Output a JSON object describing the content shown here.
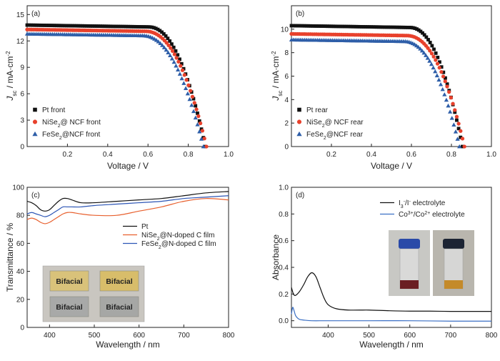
{
  "chart_data": [
    {
      "type": "scatter",
      "panel_label": "(a)",
      "xlabel": "Voltage / V",
      "ylabel_main": "J",
      "ylabel_sub": "sc",
      "ylabel_unit": " / mA·cm",
      "ylabel_sup": "-2",
      "xlim": [
        0,
        1.0
      ],
      "ylim": [
        0,
        16
      ],
      "xticks": [
        0.2,
        0.4,
        0.6,
        0.8,
        1.0
      ],
      "xticklabels": [
        "0.2",
        "0.4",
        "0.6",
        "0.8",
        "1.0"
      ],
      "yticks": [
        0,
        3,
        6,
        9,
        12,
        15
      ],
      "yticklabels": [
        "0",
        "3",
        "6",
        "9",
        "12",
        "15"
      ],
      "legend_position": "center-left",
      "series": [
        {
          "name": "Pt front",
          "legend_main": "Pt front",
          "legend_sub": "",
          "legend_rest": "",
          "marker": "square",
          "color": "#111111",
          "jsc": 13.8,
          "voc": 0.885,
          "knee": 0.6
        },
        {
          "name": "NiSe2@ NCF front",
          "legend_main": "NiSe",
          "legend_sub": "2",
          "legend_rest": "@ NCF front",
          "marker": "circle",
          "color": "#e8412c",
          "jsc": 13.3,
          "voc": 0.89,
          "knee": 0.585
        },
        {
          "name": "FeSe2@NCF front",
          "legend_main": "FeSe",
          "legend_sub": "2",
          "legend_rest": "@NCF  front",
          "marker": "triangle",
          "color": "#2e5ea8",
          "jsc": 12.8,
          "voc": 0.875,
          "knee": 0.57
        }
      ]
    },
    {
      "type": "scatter",
      "panel_label": "(b)",
      "xlabel": "Voltage / V",
      "ylabel_main": "J",
      "ylabel_sub": "sc",
      "ylabel_unit": " / mA·cm",
      "ylabel_sup": "-2",
      "xlim": [
        0,
        1.0
      ],
      "ylim": [
        0,
        12
      ],
      "xticks": [
        0.2,
        0.4,
        0.6,
        0.8,
        1.0
      ],
      "xticklabels": [
        "0.2",
        "0.4",
        "0.6",
        "0.8",
        "1.0"
      ],
      "yticks": [
        0,
        2,
        4,
        6,
        8,
        10
      ],
      "yticklabels": [
        "0",
        "2",
        "4",
        "6",
        "8",
        "10"
      ],
      "legend_position": "center-left",
      "series": [
        {
          "name": "Pt rear",
          "legend_main": "Pt rear",
          "legend_sub": "",
          "legend_rest": "",
          "marker": "square",
          "color": "#111111",
          "jsc": 10.3,
          "voc": 0.855,
          "knee": 0.59
        },
        {
          "name": "NiSe2@ NCF rear",
          "legend_main": "NiSe",
          "legend_sub": "2",
          "legend_rest": "@ NCF rear",
          "marker": "circle",
          "color": "#e8412c",
          "jsc": 9.6,
          "voc": 0.865,
          "knee": 0.575
        },
        {
          "name": "FeSe2@NCF rear",
          "legend_main": "FeSe",
          "legend_sub": "2",
          "legend_rest": "@NCF rear",
          "marker": "triangle",
          "color": "#2e5ea8",
          "jsc": 9.1,
          "voc": 0.84,
          "knee": 0.56
        }
      ]
    },
    {
      "type": "line",
      "panel_label": "(c)",
      "xlabel": "Wavelength / nm",
      "ylabel": "Transmittance / %",
      "xlim": [
        350,
        800
      ],
      "ylim": [
        0,
        100
      ],
      "xticks": [
        400,
        500,
        600,
        700,
        800
      ],
      "xticklabels": [
        "400",
        "500",
        "600",
        "700",
        "800"
      ],
      "yticks": [
        0,
        20,
        40,
        60,
        80,
        100
      ],
      "yticklabels": [
        "0",
        "20",
        "40",
        "60",
        "80",
        "100"
      ],
      "legend_position": "center-right",
      "series": [
        {
          "name": "Pt",
          "color": "#111111",
          "x": [
            350,
            360,
            370,
            380,
            390,
            400,
            410,
            420,
            430,
            440,
            450,
            470,
            500,
            550,
            600,
            650,
            700,
            750,
            800
          ],
          "y": [
            90,
            89,
            87,
            84,
            83,
            84,
            87,
            90,
            92,
            92,
            91,
            89,
            89,
            90,
            91,
            92,
            94,
            96,
            97
          ]
        },
        {
          "name": "NiSe2@N-doped C film",
          "legend_main": "NiSe",
          "legend_sub": "2",
          "legend_rest": "@N-doped C film",
          "color": "#e8602e",
          "x": [
            350,
            360,
            370,
            380,
            390,
            400,
            410,
            420,
            430,
            440,
            450,
            470,
            500,
            550,
            600,
            650,
            700,
            750,
            800
          ],
          "y": [
            77,
            78,
            77,
            75,
            74,
            75,
            77,
            79,
            81,
            82,
            82,
            81,
            80,
            80,
            83,
            86,
            90,
            92,
            91
          ]
        },
        {
          "name": "FeSe2@N-doped C film",
          "legend_main": "FeSe",
          "legend_sub": "2",
          "legend_rest": "@N-doped C film",
          "color": "#2c55b5",
          "x": [
            350,
            360,
            370,
            380,
            390,
            400,
            410,
            420,
            430,
            440,
            450,
            470,
            500,
            550,
            600,
            650,
            700,
            750,
            800
          ],
          "y": [
            81,
            82,
            81,
            80,
            79,
            80,
            82,
            84,
            86,
            86,
            86,
            86,
            87,
            88,
            89,
            90,
            92,
            93,
            94
          ]
        }
      ],
      "inset_labels": [
        "Bifacial",
        "Bifacial",
        "Bifacial",
        "Bifacial"
      ]
    },
    {
      "type": "line",
      "panel_label": "(d)",
      "xlabel": "Wavelength / nm",
      "ylabel": "Absorbance",
      "xlim": [
        310,
        800
      ],
      "ylim": [
        -0.05,
        1.0
      ],
      "xticks": [
        400,
        500,
        600,
        700,
        800
      ],
      "xticklabels": [
        "400",
        "500",
        "600",
        "700",
        "800"
      ],
      "yticks": [
        0.0,
        0.2,
        0.4,
        0.6,
        0.8,
        1.0
      ],
      "yticklabels": [
        "0.0",
        "0.2",
        "0.4",
        "0.6",
        "0.8",
        "1.0"
      ],
      "legend_position": "top-center",
      "series": [
        {
          "name": "I3-/I- electrolyte",
          "color": "#111111",
          "x": [
            310,
            315,
            320,
            330,
            340,
            350,
            360,
            370,
            380,
            390,
            400,
            420,
            450,
            500,
            550,
            600,
            650,
            700,
            750,
            800
          ],
          "y": [
            0.25,
            0.2,
            0.19,
            0.22,
            0.27,
            0.33,
            0.36,
            0.33,
            0.25,
            0.17,
            0.12,
            0.09,
            0.08,
            0.08,
            0.075,
            0.072,
            0.072,
            0.07,
            0.07,
            0.07
          ]
        },
        {
          "name": "Co3+/Co2+ electrolyte",
          "color": "#3a6fc4",
          "x": [
            310,
            313,
            316,
            320,
            325,
            330,
            340,
            360,
            400,
            500,
            600,
            700,
            800
          ],
          "y": [
            0.05,
            0.1,
            0.08,
            0.04,
            0.02,
            0.01,
            0.005,
            0.0,
            0.0,
            0.0,
            0.0,
            -0.003,
            -0.003
          ]
        }
      ]
    }
  ],
  "legend_d": {
    "l1_a": "I",
    "l1_sub": "3",
    "l1_sup": "-",
    "l1_b": "/I",
    "l1_sup2": "-",
    "l1_c": " electrolyte",
    "l2_a": "Co",
    "l2_sup": "3+",
    "l2_b": "/Co",
    "l2_sup2": "2+",
    "l2_c": " electrolyte"
  }
}
